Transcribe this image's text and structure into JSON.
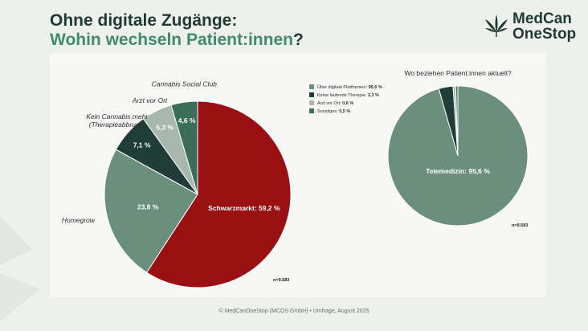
{
  "header": {
    "title_line1": "Ohne digitale Zugänge:",
    "title_line2": "Wohin wechseln Patient:innen",
    "title_qmark": "?"
  },
  "logo": {
    "line1": "MedCan",
    "line2": "OneStop"
  },
  "footer": {
    "text": "© MedCanOneStop (MCOS GmbH) • Umfrage, August 2025"
  },
  "colors": {
    "accent_green": "#3f8b6c",
    "dark_green": "#1e3a33",
    "red": "#9a0f12",
    "mid_green": "#6b8f7d",
    "darkest_green": "#203d38",
    "light_green": "#a7b8ae",
    "teal_green": "#3a6e5a"
  },
  "chart_data": [
    {
      "type": "pie",
      "title": "",
      "sample": "n=9.583",
      "slices": [
        {
          "label": "Schwarzmarkt",
          "value": 59.2,
          "value_label": "Schwarzmarkt: 59,2 %",
          "color": "#9a0f12"
        },
        {
          "label": "Homegrow",
          "value": 23.8,
          "value_label": "23,8 %",
          "color": "#6b8f7d"
        },
        {
          "label": "Kein Cannabis mehr (Therapieabbruch)",
          "label_lines": [
            "Kein Cannabis mehr",
            "(Therapieabbruch)"
          ],
          "value": 7.1,
          "value_label": "7,1 %",
          "color": "#203d38"
        },
        {
          "label": "Arzt vor Ort",
          "value": 5.3,
          "value_label": "5,3 %",
          "color": "#a7b8ae"
        },
        {
          "label": "Cannabis Social Club",
          "value": 4.6,
          "value_label": "4,6 %",
          "color": "#3a6e5a"
        }
      ]
    },
    {
      "type": "pie",
      "title": "Wo beziehen Patient:innen aktuell?",
      "sample": "n=9.583",
      "legend_position": "top-left",
      "slices": [
        {
          "label": "Über digitale Plattformen",
          "legend_text": "Über digitale Plattformen:",
          "legend_value": "95,6 %",
          "value": 95.6,
          "value_label": "Telemedizin: 95,6 %",
          "color": "#6b8f7d"
        },
        {
          "label": "Keine laufende Therapie",
          "legend_text": "Keine laufende Therapie:",
          "legend_value": "3,3 %",
          "value": 3.3,
          "color": "#203d38"
        },
        {
          "label": "Arzt vor Ort",
          "legend_text": "Arzt vor Ort:",
          "legend_value": "0,6 %",
          "value": 0.6,
          "color": "#a7b8ae"
        },
        {
          "label": "Sonstiges",
          "legend_text": "Sonstiges:",
          "legend_value": "0,5 %",
          "value": 0.5,
          "color": "#3a6e5a"
        }
      ]
    }
  ]
}
